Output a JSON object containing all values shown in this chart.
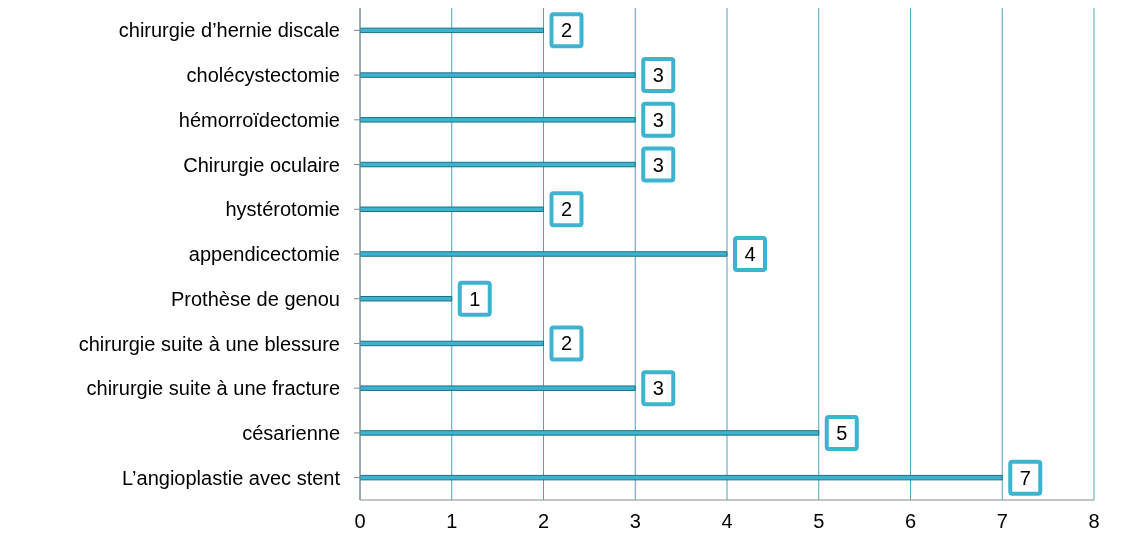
{
  "chart_data": {
    "type": "bar",
    "orientation": "horizontal",
    "categories": [
      "chirurgie d’hernie discale",
      "cholécystectomie",
      "hémorroïdectomie",
      "Chirurgie oculaire",
      "hystérotomie",
      "appendicectomie",
      "Prothèse de genou",
      "chirurgie suite à  une blessure",
      "chirurgie suite à  une fracture",
      "césarienne",
      "L’angioplastie avec stent"
    ],
    "values": [
      2,
      3,
      3,
      3,
      2,
      4,
      1,
      2,
      3,
      5,
      7
    ],
    "color": "#3cb4d0",
    "xlim": [
      0,
      8
    ],
    "xticks": [
      0,
      1,
      2,
      3,
      4,
      5,
      6,
      7,
      8
    ],
    "grid": "x",
    "data_labels": true
  }
}
